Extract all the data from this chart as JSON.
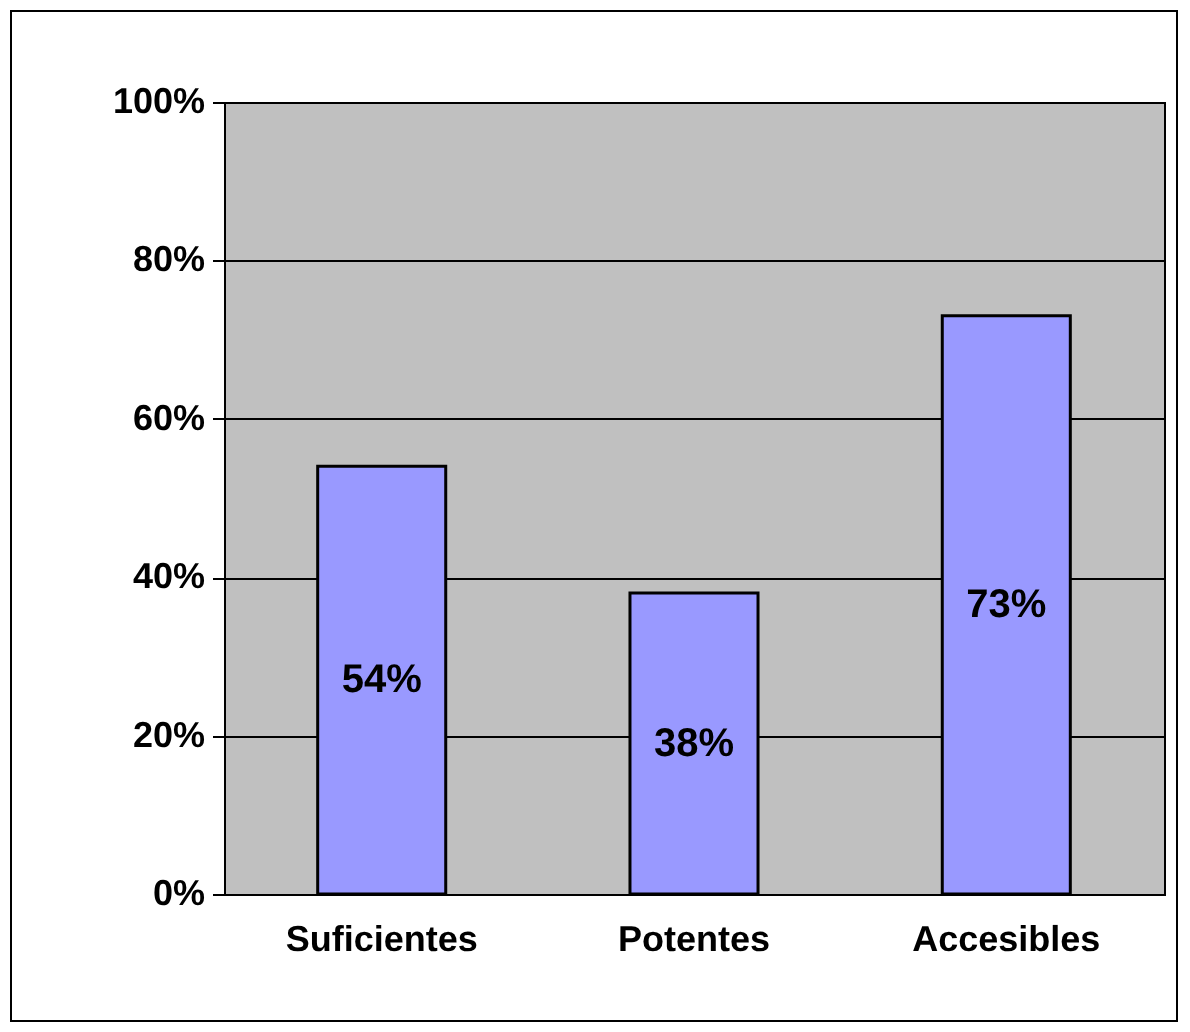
{
  "chart_data": {
    "type": "bar",
    "categories": [
      "Suficientes",
      "Potentes",
      "Accesibles"
    ],
    "values": [
      54,
      38,
      73
    ],
    "value_labels": [
      "54%",
      "38%",
      "73%"
    ],
    "color": "#9999ff",
    "ylim": [
      0,
      100
    ],
    "yticks": [
      {
        "value": 0,
        "label": "0%"
      },
      {
        "value": 20,
        "label": "20%"
      },
      {
        "value": 40,
        "label": "40%"
      },
      {
        "value": 60,
        "label": "60%"
      },
      {
        "value": 80,
        "label": "80%"
      },
      {
        "value": 100,
        "label": "100%"
      }
    ],
    "grid": "y"
  }
}
